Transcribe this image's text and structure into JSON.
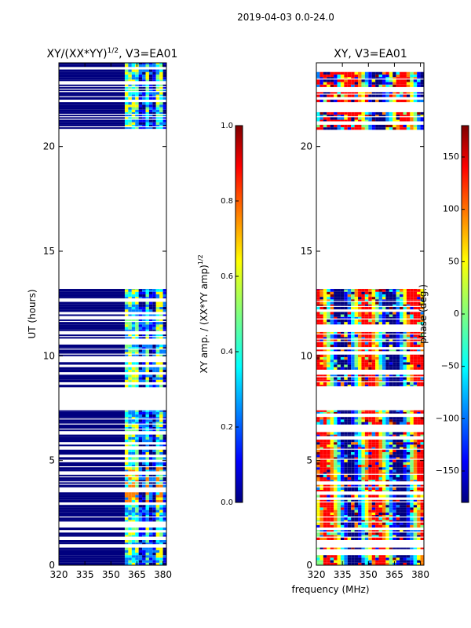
{
  "figure": {
    "suptitle": "2019-04-03 0.0-24.0",
    "xlabel": "frequency (MHz)"
  },
  "chart_data": [
    {
      "type": "heatmap",
      "id": "amp",
      "title_prefix": "XY/(XX*YY)",
      "title_exponent": "1/2",
      "title_suffix": ", V3=EA01",
      "ylabel": "UT (hours)",
      "xlim": [
        320,
        382
      ],
      "ylim": [
        0,
        24
      ],
      "xticks": [
        320,
        335,
        350,
        365,
        380
      ],
      "yticks": [
        0,
        5,
        10,
        15,
        20
      ],
      "colorbar": {
        "label_prefix": "XY amp. / (XX*YY amp)",
        "label_exponent": "1/2",
        "range": [
          0.0,
          1.0
        ],
        "ticks": [
          "0.0",
          "0.2",
          "0.4",
          "0.6",
          "0.8",
          "1.0"
        ],
        "colormap": "jet"
      },
      "data_time_ranges_hours": [
        [
          0.0,
          7.4
        ],
        [
          8.5,
          13.2
        ],
        [
          20.8,
          24.0
        ]
      ],
      "flagged_channel_ranges_mhz": [
        [
          320,
          358
        ]
      ],
      "bright_channel_ranges_mhz": [
        [
          358,
          366
        ],
        [
          369,
          372
        ],
        [
          375,
          379
        ]
      ]
    },
    {
      "type": "heatmap",
      "id": "phase",
      "title": "XY, V3=EA01",
      "xlim": [
        320,
        382
      ],
      "ylim": [
        0,
        24
      ],
      "xticks": [
        320,
        335,
        350,
        365,
        380
      ],
      "yticks": [
        0,
        5,
        10,
        15,
        20
      ],
      "colorbar": {
        "label": "phase (deg.)",
        "range": [
          -180,
          180
        ],
        "ticks": [
          "150",
          "100",
          "50",
          "0",
          "−50",
          "−100",
          "−150"
        ],
        "colormap": "jet"
      },
      "data_time_ranges_hours": [
        [
          0.0,
          7.4
        ],
        [
          8.5,
          13.2
        ],
        [
          20.8,
          24.0
        ]
      ]
    }
  ],
  "colors": {
    "jet": [
      "#00007f",
      "#0000ff",
      "#007fff",
      "#00ffff",
      "#7fff7f",
      "#ffff00",
      "#ff7f00",
      "#ff0000",
      "#7f0000"
    ]
  }
}
